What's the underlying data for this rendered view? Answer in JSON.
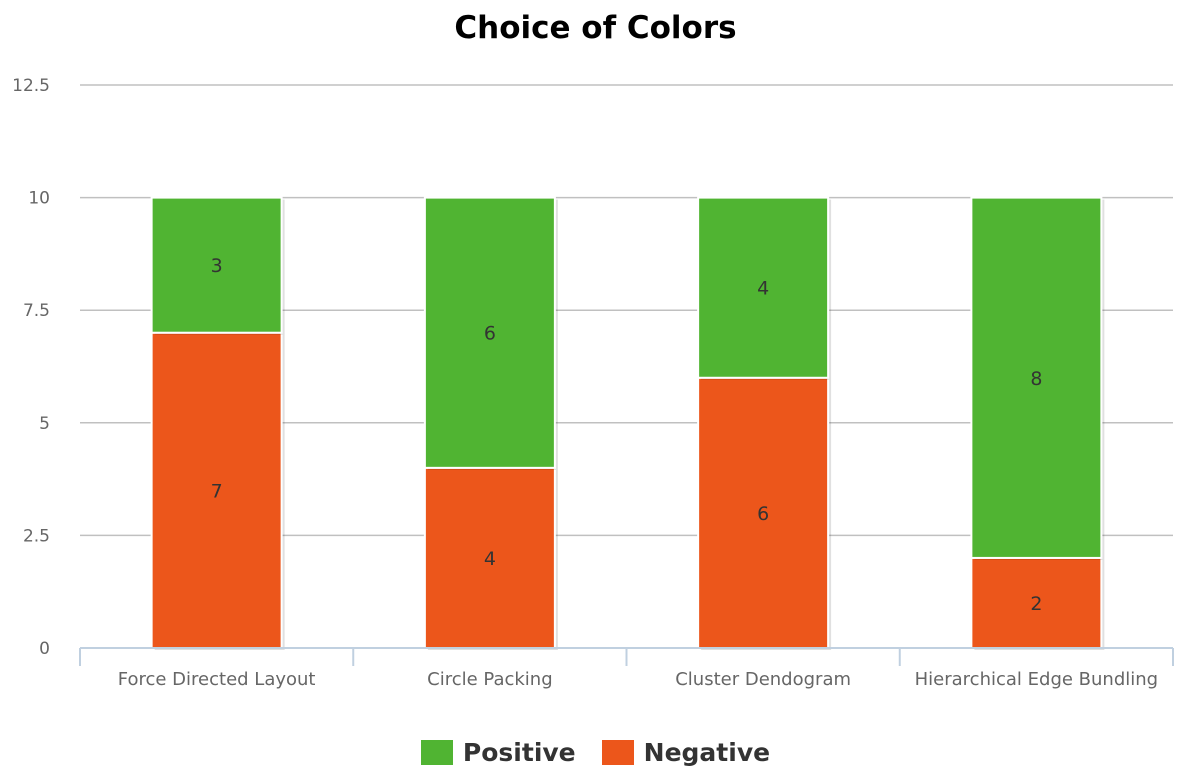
{
  "chart_data": {
    "type": "bar",
    "stacked": true,
    "title": "Choice of Colors",
    "xlabel": "",
    "ylabel": "",
    "categories": [
      "Force Directed Layout",
      "Circle Packing",
      "Cluster Dendogram",
      "Hierarchical Edge Bundling"
    ],
    "series": [
      {
        "name": "Negative",
        "color": "#ec561b",
        "values": [
          7,
          4,
          6,
          2
        ]
      },
      {
        "name": "Positive",
        "color": "#50b432",
        "values": [
          3,
          6,
          4,
          8
        ]
      }
    ],
    "ylim": [
      0,
      12.5
    ],
    "yticks": [
      "0",
      "2.5",
      "5",
      "7.5",
      "10",
      "12.5"
    ],
    "grid": true,
    "legend": {
      "placement": "bottom-center",
      "order": [
        "Positive",
        "Negative"
      ]
    },
    "data_labels": true
  }
}
